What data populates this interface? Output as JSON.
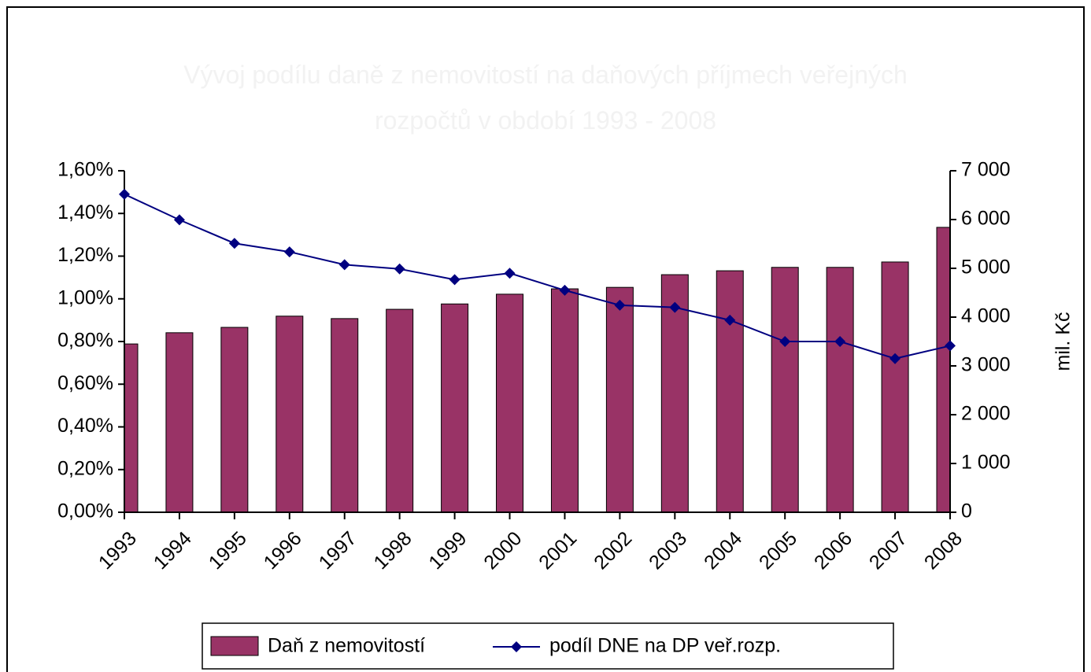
{
  "chart_data": {
    "type": "bar+line",
    "title": "Vývoj podílu daně z nemovitostí na daňových příjmech veřejných rozpočtů v období 1993 - 2008",
    "categories": [
      "1993",
      "1994",
      "1995",
      "1996",
      "1997",
      "1998",
      "1999",
      "2000",
      "2001",
      "2002",
      "2003",
      "2004",
      "2005",
      "2006",
      "2007",
      "2008"
    ],
    "series": [
      {
        "name": "Daň z nemovitostí",
        "type": "bar",
        "axis": "y2",
        "color": "#993366",
        "values": [
          3450,
          3680,
          3790,
          4020,
          3970,
          4160,
          4270,
          4470,
          4580,
          4610,
          4870,
          4950,
          5020,
          5020,
          5130,
          5840
        ]
      },
      {
        "name": "podíl DNE na DP veř.rozp.",
        "type": "line",
        "axis": "y",
        "color": "#000080",
        "values": [
          1.49,
          1.37,
          1.26,
          1.22,
          1.16,
          1.14,
          1.09,
          1.12,
          1.04,
          0.97,
          0.96,
          0.9,
          0.8,
          0.8,
          0.72,
          0.78
        ]
      }
    ],
    "ylim": [
      0,
      1.6
    ],
    "yticks": [
      {
        "value": 0,
        "label": "0,00%"
      },
      {
        "value": 0.2,
        "label": "0,20%"
      },
      {
        "value": 0.4,
        "label": "0,40%"
      },
      {
        "value": 0.6,
        "label": "0,60%"
      },
      {
        "value": 0.8,
        "label": "0,80%"
      },
      {
        "value": 1.0,
        "label": "1,00%"
      },
      {
        "value": 1.2,
        "label": "1,20%"
      },
      {
        "value": 1.4,
        "label": "1,40%"
      },
      {
        "value": 1.6,
        "label": "1,60%"
      }
    ],
    "y2lim": [
      0,
      7000
    ],
    "y2ticks": [
      0,
      {
        "value": 1000,
        "label": "1 000"
      },
      {
        "value": 2000,
        "label": "2 000"
      },
      {
        "value": 3000,
        "label": "3 000"
      },
      {
        "value": 4000,
        "label": "4 000"
      },
      {
        "value": 5000,
        "label": "5 000"
      },
      {
        "value": 6000,
        "label": "6 000"
      },
      {
        "value": 7000,
        "label": "7 000"
      }
    ],
    "y2label": "mil. Kč",
    "legend": "bottom"
  }
}
